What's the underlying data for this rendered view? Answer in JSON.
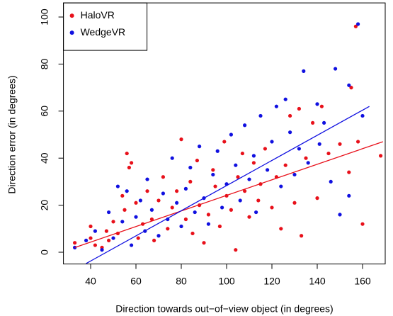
{
  "chart_data": {
    "type": "scatter",
    "x_label": "Direction towards out−of−view object (in degrees)",
    "y_label": "Direction error (in degrees)",
    "xlim": [
      28,
      170
    ],
    "ylim": [
      -5,
      106
    ],
    "xticks": [
      40,
      60,
      80,
      100,
      120,
      140,
      160
    ],
    "yticks": [
      0,
      20,
      40,
      60,
      80,
      100
    ],
    "legend": "top-left",
    "series": [
      {
        "name": "HaloVR",
        "color": "#e8101a",
        "x": [
          33,
          40,
          40,
          42,
          45,
          47,
          48,
          50,
          52,
          54,
          55,
          56,
          57,
          58,
          60,
          61,
          63,
          65,
          67,
          68,
          70,
          72,
          74,
          76,
          78,
          80,
          82,
          84,
          85,
          87,
          88,
          90,
          92,
          94,
          95,
          97,
          99,
          100,
          102,
          104,
          105,
          107,
          108,
          110,
          112,
          114,
          115,
          117,
          120,
          122,
          124,
          126,
          128,
          130,
          132,
          133,
          135,
          138,
          140,
          142,
          145,
          150,
          154,
          155,
          157,
          158,
          160,
          168
        ],
        "y": [
          4,
          11,
          6,
          3,
          2,
          9,
          5,
          13,
          8,
          24,
          18,
          42,
          36,
          38,
          21,
          6,
          12,
          26,
          14,
          5,
          22,
          32,
          10,
          19,
          26,
          48,
          14,
          30,
          8,
          39,
          20,
          4,
          16,
          35,
          28,
          11,
          47,
          24,
          18,
          1,
          32,
          42,
          26,
          15,
          38,
          22,
          29,
          44,
          19,
          32,
          10,
          37,
          58,
          21,
          61,
          7,
          40,
          55,
          23,
          62,
          42,
          46,
          34,
          70,
          96,
          47,
          12,
          41
        ],
        "fit": {
          "x": [
            33,
            169
          ],
          "y": [
            2,
            47
          ]
        }
      },
      {
        "name": "WedgeVR",
        "color": "#1010e0",
        "x": [
          33,
          38,
          42,
          45,
          48,
          50,
          52,
          54,
          56,
          58,
          60,
          62,
          64,
          65,
          67,
          70,
          72,
          74,
          76,
          78,
          80,
          82,
          84,
          86,
          88,
          90,
          92,
          94,
          96,
          98,
          100,
          102,
          104,
          106,
          108,
          110,
          112,
          113,
          115,
          118,
          120,
          122,
          124,
          126,
          128,
          130,
          132,
          134,
          136,
          140,
          141,
          143,
          146,
          148,
          150,
          154,
          154,
          158,
          160
        ],
        "y": [
          2,
          5,
          9,
          1,
          17,
          6,
          28,
          13,
          26,
          3,
          15,
          22,
          9,
          31,
          18,
          7,
          25,
          14,
          40,
          21,
          11,
          27,
          36,
          17,
          45,
          23,
          12,
          33,
          43,
          19,
          29,
          50,
          37,
          22,
          54,
          31,
          41,
          17,
          58,
          35,
          47,
          62,
          28,
          65,
          51,
          33,
          44,
          77,
          38,
          63,
          46,
          55,
          30,
          78,
          16,
          71,
          24,
          97,
          58
        ],
        "fit": {
          "x": [
            38,
            163
          ],
          "y": [
            -4.8,
            62
          ]
        }
      }
    ]
  }
}
